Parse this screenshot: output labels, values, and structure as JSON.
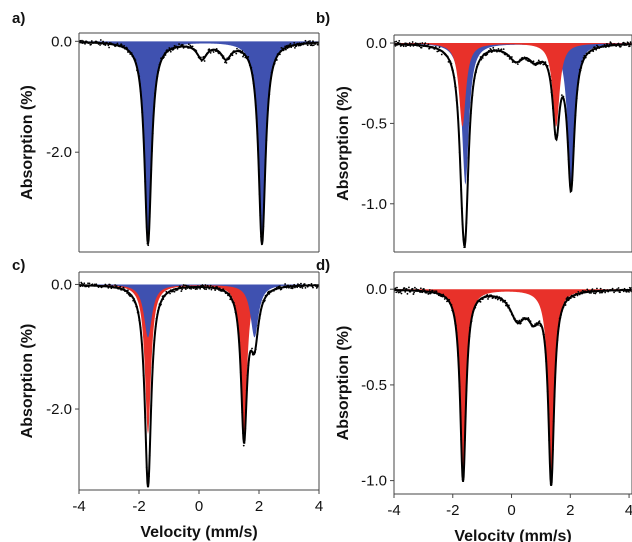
{
  "chart_data": [
    {
      "type": "area",
      "panel_label": "a)",
      "xlabel": "",
      "ylabel": "Absorption (%)",
      "xlim": [
        -4,
        4
      ],
      "ylim": [
        -3.8,
        0.15
      ],
      "yticks": [
        {
          "value": 0.0,
          "label": "0.0"
        },
        {
          "value": -2.0,
          "label": "-2.0"
        }
      ],
      "xticks": [],
      "series": [
        {
          "component": "doublet",
          "fill": "#3f51b0",
          "peaks": [
            {
              "x": -1.7,
              "depth": 3.65,
              "hwhm": 0.14
            },
            {
              "x": 2.1,
              "depth": 3.65,
              "hwhm": 0.14
            }
          ]
        }
      ],
      "extra_dip": [
        {
          "x": 0.1,
          "depth": 0.28,
          "hwhm": 0.2
        },
        {
          "x": 0.9,
          "depth": 0.26,
          "hwhm": 0.2
        }
      ]
    },
    {
      "type": "area",
      "panel_label": "b)",
      "xlabel": "",
      "ylabel": "Absorption (%)",
      "xlim": [
        -4,
        4
      ],
      "ylim": [
        -1.3,
        0.05
      ],
      "yticks": [
        {
          "value": 0.0,
          "label": "0.0"
        },
        {
          "value": -0.5,
          "label": "-0.5"
        },
        {
          "value": -1.0,
          "label": "-1.0"
        }
      ],
      "xticks": [],
      "series": [
        {
          "component": "blue-doublet",
          "fill": "#3f51b0",
          "peaks": [
            {
              "x": -1.6,
              "depth": 0.88,
              "hwhm": 0.14
            },
            {
              "x": 1.95,
              "depth": 0.88,
              "hwhm": 0.14
            }
          ]
        },
        {
          "component": "red-doublet",
          "fill": "#e8312a",
          "peaks": [
            {
              "x": -1.7,
              "depth": 0.52,
              "hwhm": 0.14
            },
            {
              "x": 1.45,
              "depth": 0.52,
              "hwhm": 0.14
            }
          ]
        }
      ],
      "extra_dip": [
        {
          "x": 0.1,
          "depth": 0.09,
          "hwhm": 0.3
        },
        {
          "x": 0.75,
          "depth": 0.08,
          "hwhm": 0.25
        }
      ]
    },
    {
      "type": "area",
      "panel_label": "c)",
      "xlabel": "Velocity (mm/s)",
      "ylabel": "Absorption (%)",
      "xlim": [
        -4,
        4
      ],
      "ylim": [
        -3.3,
        0.2
      ],
      "yticks": [
        {
          "value": 0.0,
          "label": "0.0"
        },
        {
          "value": -2.0,
          "label": "-2.0"
        }
      ],
      "xticks": [
        {
          "value": -4,
          "label": "-4"
        },
        {
          "value": -2,
          "label": "-2"
        },
        {
          "value": 0,
          "label": "0"
        },
        {
          "value": 2,
          "label": "2"
        },
        {
          "value": 4,
          "label": "4"
        }
      ],
      "series": [
        {
          "component": "red-doublet",
          "fill": "#e8312a",
          "peaks": [
            {
              "x": -1.7,
              "depth": 2.4,
              "hwhm": 0.12
            },
            {
              "x": 1.5,
              "depth": 2.4,
              "hwhm": 0.12
            }
          ]
        },
        {
          "component": "blue-doublet",
          "fill": "#3f51b0",
          "peaks": [
            {
              "x": -1.7,
              "depth": 0.85,
              "hwhm": 0.16
            },
            {
              "x": 1.85,
              "depth": 0.85,
              "hwhm": 0.16
            }
          ]
        }
      ],
      "extra_dip": []
    },
    {
      "type": "area",
      "panel_label": "d)",
      "xlabel": "Velocity (mm/s)",
      "ylabel": "Absorption (%)",
      "xlim": [
        -4,
        4.1
      ],
      "ylim": [
        -1.07,
        0.09
      ],
      "yticks": [
        {
          "value": 0.0,
          "label": "0.0"
        },
        {
          "value": -0.5,
          "label": "-0.5"
        },
        {
          "value": -1.0,
          "label": "-1.0"
        }
      ],
      "xticks": [
        {
          "value": -4,
          "label": "-4"
        },
        {
          "value": -2,
          "label": "-2"
        },
        {
          "value": 0,
          "label": "0"
        },
        {
          "value": 2,
          "label": "2"
        },
        {
          "value": 4,
          "label": "4"
        }
      ],
      "series": [
        {
          "component": "red-doublet",
          "fill": "#e8312a",
          "peaks": [
            {
              "x": -1.65,
              "depth": 1.0,
              "hwhm": 0.12
            },
            {
              "x": 1.35,
              "depth": 1.0,
              "hwhm": 0.12
            }
          ]
        }
      ],
      "extra_dip": [
        {
          "x": 0.2,
          "depth": 0.14,
          "hwhm": 0.3
        },
        {
          "x": 0.75,
          "depth": 0.12,
          "hwhm": 0.25
        }
      ]
    }
  ]
}
